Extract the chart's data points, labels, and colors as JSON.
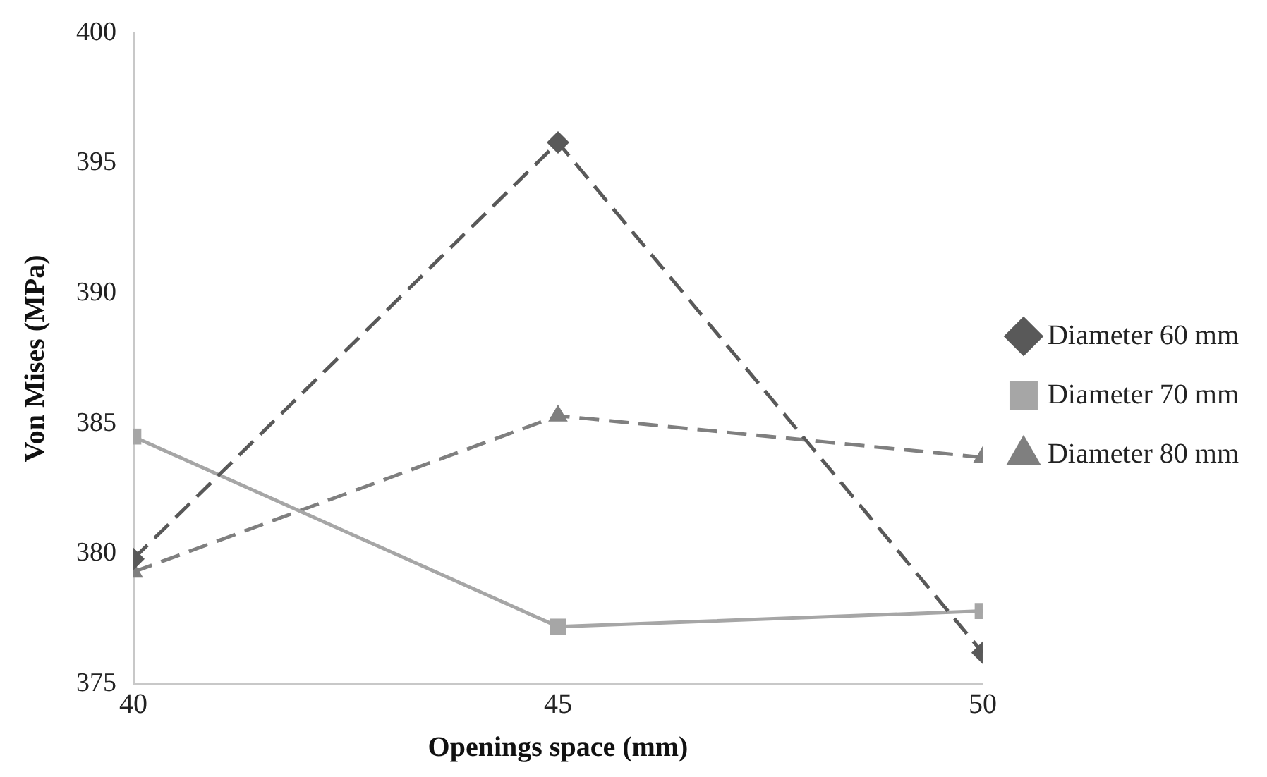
{
  "chart_data": {
    "type": "line",
    "xlabel": "Openings space (mm)",
    "ylabel": "Von Mises (MPa)",
    "x": [
      40,
      45,
      50
    ],
    "xlim": [
      40,
      50
    ],
    "xticks": [
      40,
      45,
      50
    ],
    "ylim": [
      375,
      400
    ],
    "yticks": [
      375,
      380,
      385,
      390,
      395,
      400
    ],
    "grid": false,
    "legend": "right",
    "series": [
      {
        "name": "Diameter 60 mm",
        "color": "#595959",
        "values": [
          379.8,
          395.8,
          376.2
        ],
        "marker": "diamond",
        "line_style": "dashed"
      },
      {
        "name": "Diameter 70 mm",
        "color": "#a6a6a6",
        "values": [
          384.5,
          377.2,
          377.8
        ],
        "marker": "square",
        "line_style": "solid"
      },
      {
        "name": "Diameter 80 mm",
        "color": "#7f7f7f",
        "values": [
          379.3,
          385.3,
          383.7
        ],
        "marker": "triangle",
        "line_style": "dashed"
      }
    ]
  }
}
